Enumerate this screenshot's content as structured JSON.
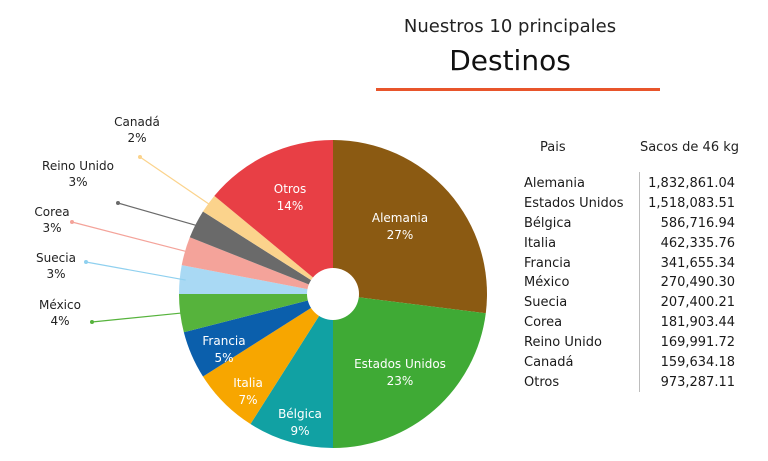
{
  "header": {
    "subtitle": "Nuestros 10 principales",
    "title": "Destinos"
  },
  "chart_data": {
    "type": "pie",
    "donut_hole": true,
    "slices": [
      {
        "label": "Alemania",
        "pct_label": "27%",
        "value": 27,
        "color": "#8b5a12"
      },
      {
        "label": "Estados Unidos",
        "pct_label": "23%",
        "value": 23,
        "color": "#3faa35"
      },
      {
        "label": "Bélgica",
        "pct_label": "9%",
        "value": 9,
        "color": "#11a1a3"
      },
      {
        "label": "Italia",
        "pct_label": "7%",
        "value": 7,
        "color": "#f7a600"
      },
      {
        "label": "Francia",
        "pct_label": "5%",
        "value": 5,
        "color": "#0b5fac"
      },
      {
        "label": "México",
        "pct_label": "4%",
        "value": 4,
        "color": "#56b33c"
      },
      {
        "label": "Suecia",
        "pct_label": "3%",
        "value": 3,
        "color": "#a9d9f4"
      },
      {
        "label": "Corea",
        "pct_label": "3%",
        "value": 3,
        "color": "#f4a39a"
      },
      {
        "label": "Reino Unido",
        "pct_label": "3%",
        "value": 3,
        "color": "#6a6a6a"
      },
      {
        "label": "Canadá",
        "pct_label": "2%",
        "value": 2,
        "color": "#fbd38c"
      },
      {
        "label": "Otros",
        "pct_label": "14%",
        "value": 14,
        "color": "#e83f45"
      }
    ]
  },
  "table": {
    "header_country": "Pais",
    "header_bags": "Sacos de 46 kg",
    "rows": [
      {
        "country": "Alemania",
        "bags": "1,832,861.04"
      },
      {
        "country": "Estados Unidos",
        "bags": "1,518,083.51"
      },
      {
        "country": "Bélgica",
        "bags": "586,716.94"
      },
      {
        "country": "Italia",
        "bags": "462,335.76"
      },
      {
        "country": "Francia",
        "bags": "341,655.34"
      },
      {
        "country": "México",
        "bags": "270,490.30"
      },
      {
        "country": "Suecia",
        "bags": "207,400.21"
      },
      {
        "country": "Corea",
        "bags": "181,903.44"
      },
      {
        "country": "Reino Unido",
        "bags": "169,991.72"
      },
      {
        "country": "Canadá",
        "bags": "159,634.18"
      },
      {
        "country": "Otros",
        "bags": "973,287.11"
      }
    ]
  }
}
